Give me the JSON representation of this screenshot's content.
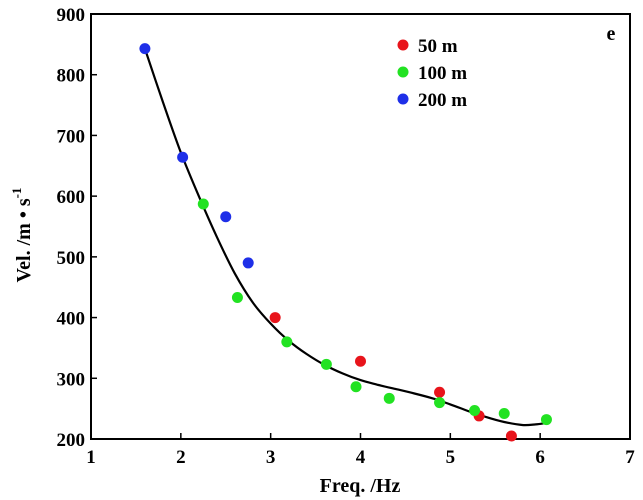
{
  "chart_data": {
    "type": "scatter",
    "panel_label": "e",
    "xlabel": "Freq. /Hz",
    "ylabel": "Vel. /m • s",
    "ylabel_superscript": "-1",
    "xlim": [
      1,
      7
    ],
    "ylim": [
      200,
      900
    ],
    "xticks": [
      1,
      2,
      3,
      4,
      5,
      6,
      7
    ],
    "yticks": [
      200,
      300,
      400,
      500,
      600,
      700,
      800,
      900
    ],
    "grid": false,
    "legend_position": "top-right",
    "series": [
      {
        "name": "50 m",
        "color": "#e8141b",
        "points": [
          [
            3.05,
            400
          ],
          [
            4.0,
            328
          ],
          [
            4.88,
            277
          ],
          [
            5.32,
            238
          ],
          [
            5.68,
            205
          ]
        ]
      },
      {
        "name": "100 m",
        "color": "#22e222",
        "points": [
          [
            2.25,
            587
          ],
          [
            2.63,
            433
          ],
          [
            3.18,
            360
          ],
          [
            3.62,
            323
          ],
          [
            3.95,
            286
          ],
          [
            4.32,
            267
          ],
          [
            4.88,
            260
          ],
          [
            5.27,
            247
          ],
          [
            5.6,
            242
          ],
          [
            6.07,
            232
          ]
        ]
      },
      {
        "name": "200 m",
        "color": "#1e2fe8",
        "points": [
          [
            1.6,
            843
          ],
          [
            2.02,
            664
          ],
          [
            2.5,
            566
          ],
          [
            2.75,
            490
          ]
        ]
      }
    ],
    "fit_curve": {
      "color": "#000000",
      "points": [
        [
          1.6,
          843
        ],
        [
          1.8,
          755
        ],
        [
          2.0,
          672
        ],
        [
          2.2,
          600
        ],
        [
          2.4,
          533
        ],
        [
          2.6,
          473
        ],
        [
          2.8,
          425
        ],
        [
          3.0,
          390
        ],
        [
          3.2,
          362
        ],
        [
          3.4,
          340
        ],
        [
          3.6,
          322
        ],
        [
          3.8,
          308
        ],
        [
          4.0,
          297
        ],
        [
          4.2,
          289
        ],
        [
          4.4,
          282
        ],
        [
          4.6,
          275
        ],
        [
          4.8,
          267
        ],
        [
          5.0,
          257
        ],
        [
          5.2,
          246
        ],
        [
          5.4,
          236
        ],
        [
          5.6,
          228
        ],
        [
          5.8,
          223
        ],
        [
          5.95,
          224
        ],
        [
          6.05,
          226
        ]
      ]
    }
  }
}
